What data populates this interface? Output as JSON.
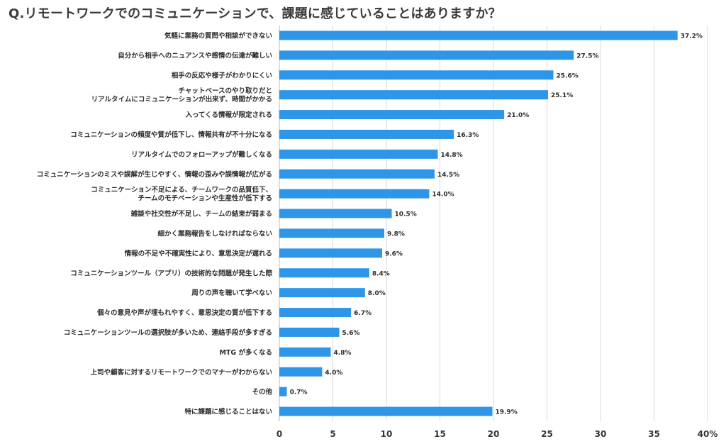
{
  "title": "Q.リモートワークでのコミュニケーションで、課題に感じていることはありますか？",
  "chart_data": {
    "type": "bar",
    "orientation": "horizontal",
    "categories": [
      "気軽に業務の質問や相談ができない",
      "自分から相手へのニュアンスや感情の伝達が難しい",
      "相手の反応や様子がわかりにくい",
      "チャットベースのやり取りだと\nリアルタイムにコミュニケーションが出来ず、時間がかかる",
      "入ってくる情報が限定される",
      "コミュニケーションの頻度や質が低下し、情報共有が不十分になる",
      "リアルタイムでのフォローアップが難しくなる",
      "コミュニケーションのミスや誤解が生じやすく、情報の歪みや誤情報が広がる",
      "コミュニケーション不足による、チームワークの品質低下、\nチームのモチベーションや生産性が低下する",
      "雑談や社交性が不足し、チームの結束が弱まる",
      "細かく業務報告をしなければならない",
      "情報の不足や不確実性により、意思決定が遅れる",
      "コミュニケーションツール（アプリ）の技術的な問題が発生した際",
      "周りの声を聴いて学べない",
      "個々の意見や声が埋もれやすく、意思決定の質が低下する",
      "コミュニケーションツールの選択肢が多いため、連絡手段が多すぎる",
      "MTG が多くなる",
      "上司や顧客に対するリモートワークでのマナーがわからない",
      "その他",
      "特に課題に感じることはない"
    ],
    "values": [
      37.2,
      27.5,
      25.6,
      25.1,
      21.0,
      16.3,
      14.8,
      14.5,
      14.0,
      10.5,
      9.8,
      9.6,
      8.4,
      8.0,
      6.7,
      5.6,
      4.8,
      4.0,
      0.7,
      19.9
    ],
    "value_labels": [
      "37.2%",
      "27.5%",
      "25.6%",
      "25.1%",
      "21.0%",
      "16.3%",
      "14.8%",
      "14.5%",
      "14.0%",
      "10.5%",
      "9.8%",
      "9.6%",
      "8.4%",
      "8.0%",
      "6.7%",
      "5.6%",
      "4.8%",
      "4.0%",
      "0.7%",
      "19.9%"
    ],
    "x_ticks": [
      "0",
      "5",
      "10",
      "15",
      "20",
      "25",
      "30",
      "35",
      "40%"
    ],
    "xlim": [
      0,
      40
    ],
    "grid": "vertical",
    "bar_color": "#2e96e8",
    "grid_color": "#d9d9d9"
  }
}
